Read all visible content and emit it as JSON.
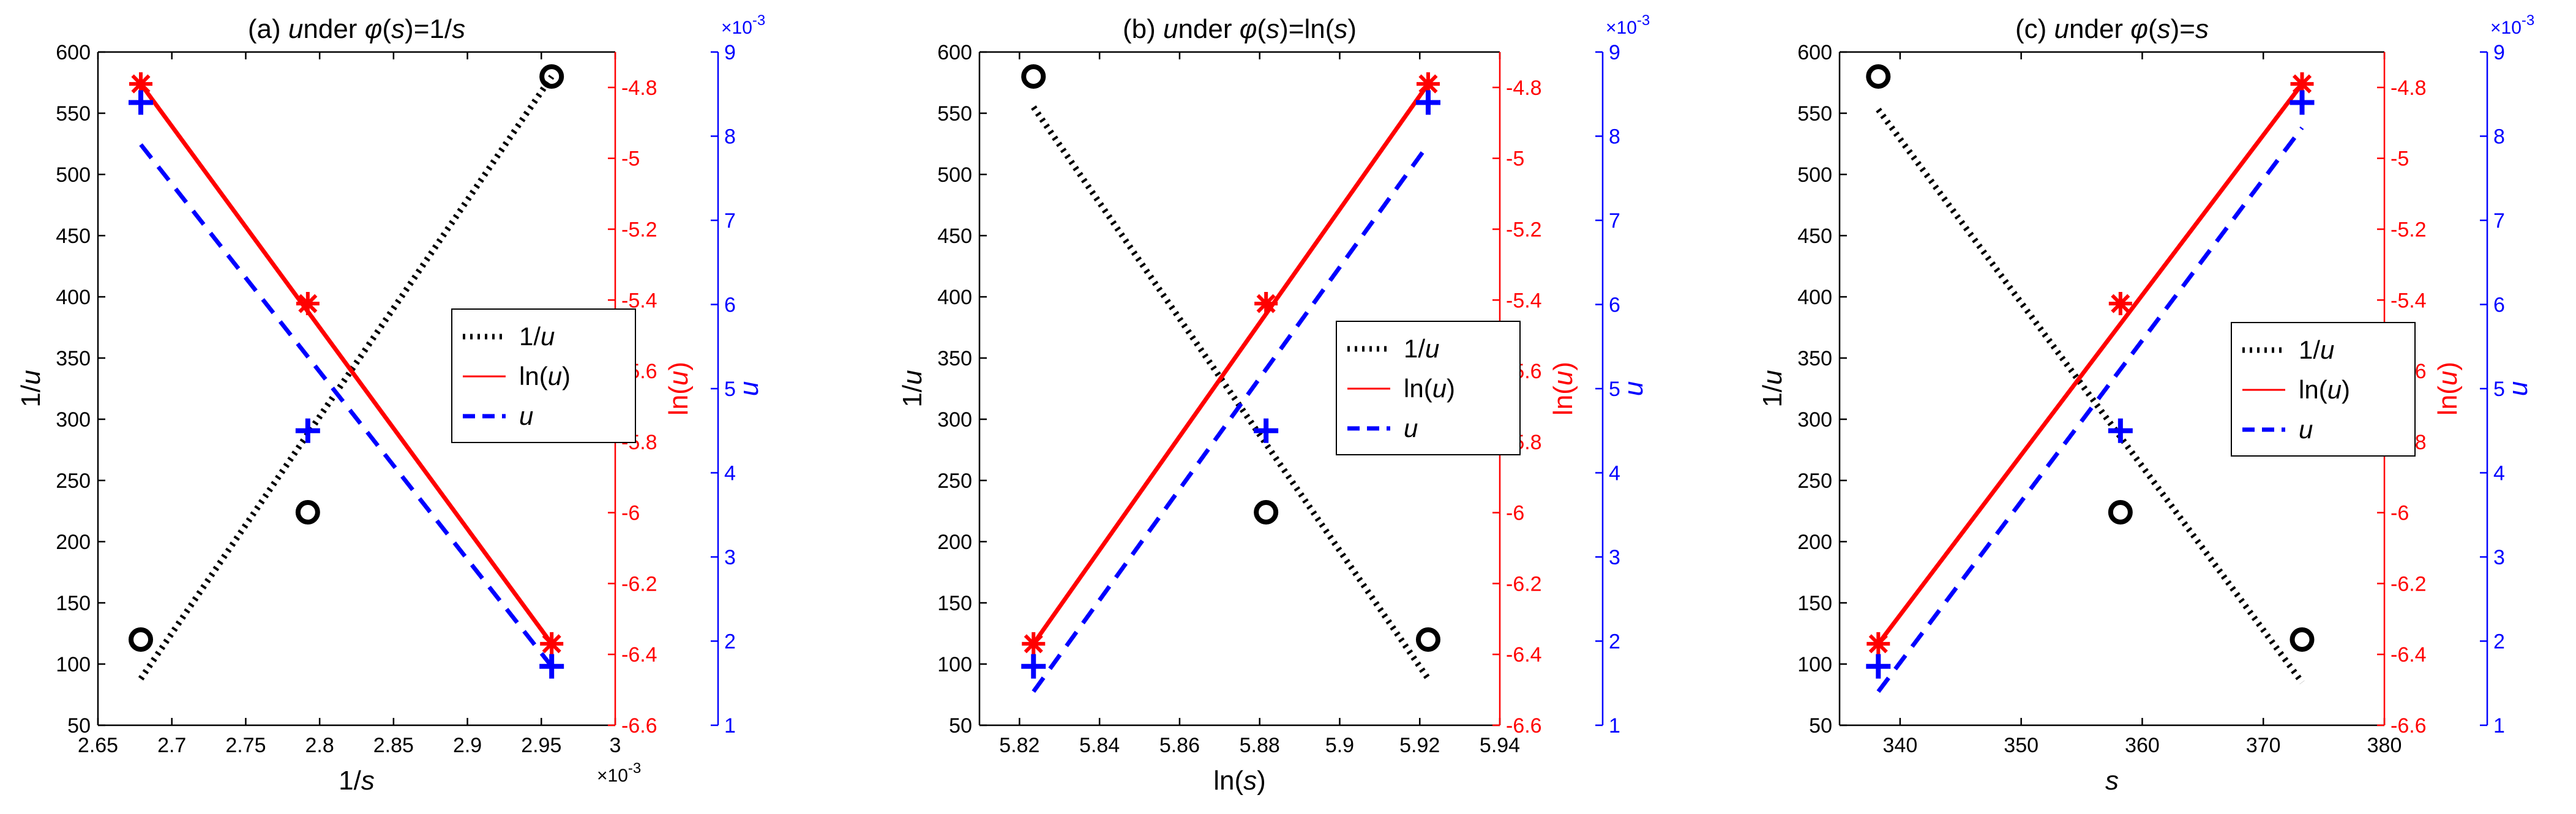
{
  "colors": {
    "black": "#000000",
    "red": "#ff0000",
    "blue": "#0000ff"
  },
  "chart_data": [
    {
      "type": "line",
      "title": "(a) under φ(s)=1/s",
      "xlabel": "1/s",
      "xlim": [
        0.00265,
        0.003
      ],
      "xticks": [
        0.00265,
        0.0027,
        0.00275,
        0.0028,
        0.00285,
        0.0029,
        0.00295,
        0.003
      ],
      "xtick_labels": [
        "2.65",
        "2.7",
        "2.75",
        "2.8",
        "2.85",
        "2.9",
        "2.95",
        "3"
      ],
      "x_exponent": "×10",
      "x_exponent_power": "-3",
      "y_axes": [
        {
          "label": "1/u",
          "side": "left",
          "color": "#000000",
          "lim": [
            50,
            600
          ],
          "ticks": [
            50,
            100,
            150,
            200,
            250,
            300,
            350,
            400,
            450,
            500,
            550,
            600
          ],
          "tick_labels": [
            "50",
            "100",
            "150",
            "200",
            "250",
            "300",
            "350",
            "400",
            "450",
            "500",
            "550",
            "600"
          ]
        },
        {
          "label": "ln(u)",
          "side": "right",
          "color": "#ff0000",
          "lim": [
            -6.6,
            -4.7
          ],
          "ticks": [
            -6.6,
            -6.4,
            -6.2,
            -6,
            -5.8,
            -5.6,
            -5.4,
            -5.2,
            -5,
            -4.8
          ],
          "tick_labels": [
            "-6.6",
            "-6.4",
            "-6.2",
            "-6",
            "-5.8",
            "-5.6",
            "-5.4",
            "-5.2",
            "-5",
            "-4.8"
          ]
        },
        {
          "label": "u",
          "side": "right-outer",
          "color": "#0000ff",
          "lim": [
            0.001,
            0.009
          ],
          "ticks": [
            0.001,
            0.002,
            0.003,
            0.004,
            0.005,
            0.006,
            0.007,
            0.008,
            0.009
          ],
          "tick_labels": [
            "1",
            "2",
            "3",
            "4",
            "5",
            "6",
            "7",
            "8",
            "9"
          ],
          "exponent": "×10",
          "exponent_power": "-3"
        }
      ],
      "series": [
        {
          "name": "1/u",
          "axis": 0,
          "color": "#000000",
          "marker": "circle",
          "line": "dotted",
          "points": [
            [
              0.002679,
              120
            ],
            [
              0.002792,
              224
            ],
            [
              0.002957,
              580
            ]
          ],
          "fit": [
            [
              0.002679,
              88
            ],
            [
              0.002957,
              580
            ]
          ]
        },
        {
          "name": "ln(u)",
          "axis": 1,
          "color": "#ff0000",
          "marker": "asterisk",
          "line": "solid",
          "points": [
            [
              0.002679,
              -4.79
            ],
            [
              0.002792,
              -5.41
            ],
            [
              0.002957,
              -6.37
            ]
          ],
          "fit": [
            [
              0.002679,
              -4.79
            ],
            [
              0.002957,
              -6.37
            ]
          ]
        },
        {
          "name": "u",
          "axis": 2,
          "color": "#0000ff",
          "marker": "plus",
          "line": "dashed",
          "points": [
            [
              0.002679,
              0.0084
            ],
            [
              0.002792,
              0.0045
            ],
            [
              0.002957,
              0.0017
            ]
          ],
          "fit": [
            [
              0.002679,
              0.0079
            ],
            [
              0.002957,
              0.0017
            ]
          ]
        }
      ],
      "legend": {
        "entries": [
          "1/u",
          "ln(u)",
          "u"
        ]
      }
    },
    {
      "type": "line",
      "title": "(b) under φ(s)=ln(s)",
      "xlabel": "ln(s)",
      "xlim": [
        5.81,
        5.94
      ],
      "xticks": [
        5.82,
        5.84,
        5.86,
        5.88,
        5.9,
        5.92,
        5.94
      ],
      "xtick_labels": [
        "5.82",
        "5.84",
        "5.86",
        "5.88",
        "5.9",
        "5.92",
        "5.94"
      ],
      "y_axes": [
        {
          "label": "1/u",
          "side": "left",
          "color": "#000000",
          "lim": [
            50,
            600
          ],
          "ticks": [
            50,
            100,
            150,
            200,
            250,
            300,
            350,
            400,
            450,
            500,
            550,
            600
          ],
          "tick_labels": [
            "50",
            "100",
            "150",
            "200",
            "250",
            "300",
            "350",
            "400",
            "450",
            "500",
            "550",
            "600"
          ]
        },
        {
          "label": "ln(u)",
          "side": "right",
          "color": "#ff0000",
          "lim": [
            -6.6,
            -4.7
          ],
          "ticks": [
            -6.6,
            -6.4,
            -6.2,
            -6,
            -5.8,
            -5.6,
            -5.4,
            -5.2,
            -5,
            -4.8
          ],
          "tick_labels": [
            "-6.6",
            "-6.4",
            "-6.2",
            "-6",
            "-5.8",
            "-5.6",
            "-5.4",
            "-5.2",
            "-5",
            "-4.8"
          ]
        },
        {
          "label": "u",
          "side": "right-outer",
          "color": "#0000ff",
          "lim": [
            0.001,
            0.009
          ],
          "ticks": [
            0.001,
            0.002,
            0.003,
            0.004,
            0.005,
            0.006,
            0.007,
            0.008,
            0.009
          ],
          "tick_labels": [
            "1",
            "2",
            "3",
            "4",
            "5",
            "6",
            "7",
            "8",
            "9"
          ],
          "exponent": "×10",
          "exponent_power": "-3"
        }
      ],
      "series": [
        {
          "name": "1/u",
          "axis": 0,
          "color": "#000000",
          "marker": "circle",
          "line": "dotted",
          "points": [
            [
              5.8235,
              580
            ],
            [
              5.8816,
              224
            ],
            [
              5.9221,
              120
            ]
          ],
          "fit": [
            [
              5.8235,
              555
            ],
            [
              5.9221,
              88
            ]
          ]
        },
        {
          "name": "ln(u)",
          "axis": 1,
          "color": "#ff0000",
          "marker": "asterisk",
          "line": "solid",
          "points": [
            [
              5.8235,
              -6.37
            ],
            [
              5.8816,
              -5.41
            ],
            [
              5.9221,
              -4.79
            ]
          ],
          "fit": [
            [
              5.8235,
              -6.37
            ],
            [
              5.9221,
              -4.79
            ]
          ]
        },
        {
          "name": "u",
          "axis": 2,
          "color": "#0000ff",
          "marker": "plus",
          "line": "dashed",
          "points": [
            [
              5.8235,
              0.0017
            ],
            [
              5.8816,
              0.0045
            ],
            [
              5.9221,
              0.0084
            ]
          ],
          "fit": [
            [
              5.8235,
              0.0014
            ],
            [
              5.9221,
              0.0079
            ]
          ]
        }
      ],
      "legend": {
        "entries": [
          "1/u",
          "ln(u)",
          "u"
        ]
      }
    },
    {
      "type": "line",
      "title": "(c) under φ(s)=s",
      "xlabel": "s",
      "xlim": [
        335,
        380
      ],
      "xticks": [
        340,
        350,
        360,
        370,
        380
      ],
      "xtick_labels": [
        "340",
        "350",
        "360",
        "370",
        "380"
      ],
      "y_axes": [
        {
          "label": "1/u",
          "side": "left",
          "color": "#000000",
          "lim": [
            50,
            600
          ],
          "ticks": [
            50,
            100,
            150,
            200,
            250,
            300,
            350,
            400,
            450,
            500,
            550,
            600
          ],
          "tick_labels": [
            "50",
            "100",
            "150",
            "200",
            "250",
            "300",
            "350",
            "400",
            "450",
            "500",
            "550",
            "600"
          ]
        },
        {
          "label": "ln(u)",
          "side": "right",
          "color": "#ff0000",
          "lim": [
            -6.6,
            -4.7
          ],
          "ticks": [
            -6.6,
            -6.4,
            -6.2,
            -6,
            -5.8,
            -5.6,
            -5.4,
            -5.2,
            -5,
            -4.8
          ],
          "tick_labels": [
            "-6.6",
            "-6.4",
            "-6.2",
            "-6",
            "-5.8",
            "-5.6",
            "-5.4",
            "-5.2",
            "-5",
            "-4.8"
          ]
        },
        {
          "label": "u",
          "side": "right-outer",
          "color": "#0000ff",
          "lim": [
            0.001,
            0.009
          ],
          "ticks": [
            0.001,
            0.002,
            0.003,
            0.004,
            0.005,
            0.006,
            0.007,
            0.008,
            0.009
          ],
          "tick_labels": [
            "1",
            "2",
            "3",
            "4",
            "5",
            "6",
            "7",
            "8",
            "9"
          ],
          "exponent": "×10",
          "exponent_power": "-3"
        }
      ],
      "series": [
        {
          "name": "1/u",
          "axis": 0,
          "color": "#000000",
          "marker": "circle",
          "line": "dotted",
          "points": [
            [
              338.2,
              580
            ],
            [
              358.2,
              224
            ],
            [
              373.2,
              120
            ]
          ],
          "fit": [
            [
              338.2,
              553
            ],
            [
              373.2,
              85
            ]
          ]
        },
        {
          "name": "ln(u)",
          "axis": 1,
          "color": "#ff0000",
          "marker": "asterisk",
          "line": "solid",
          "points": [
            [
              338.2,
              -6.37
            ],
            [
              358.2,
              -5.41
            ],
            [
              373.2,
              -4.79
            ]
          ],
          "fit": [
            [
              338.2,
              -6.37
            ],
            [
              373.2,
              -4.79
            ]
          ]
        },
        {
          "name": "u",
          "axis": 2,
          "color": "#0000ff",
          "marker": "plus",
          "line": "dashed",
          "points": [
            [
              338.2,
              0.0017
            ],
            [
              358.2,
              0.0045
            ],
            [
              373.2,
              0.0084
            ]
          ],
          "fit": [
            [
              338.2,
              0.0014
            ],
            [
              373.2,
              0.0081
            ]
          ]
        }
      ],
      "legend": {
        "entries": [
          "1/u",
          "ln(u)",
          "u"
        ]
      }
    }
  ]
}
